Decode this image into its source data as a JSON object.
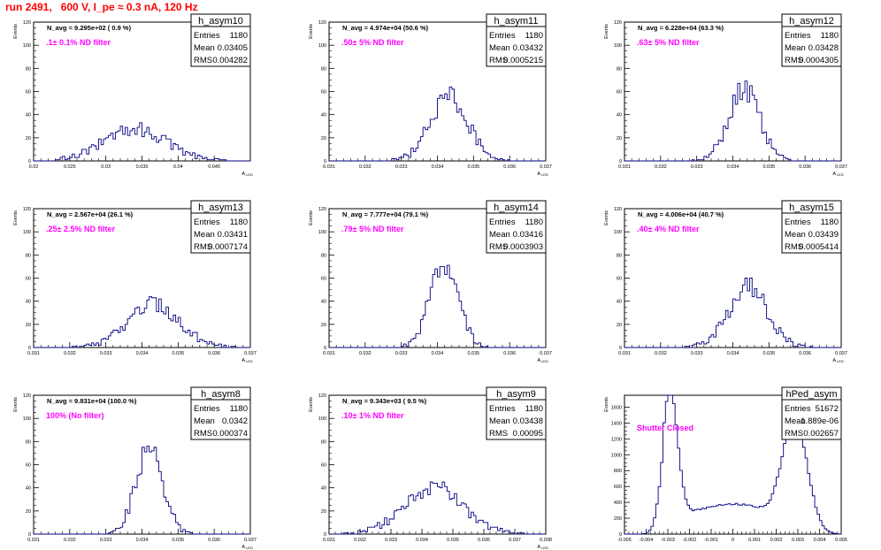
{
  "run_title": "run 2491,   600 V, I_pe ≈ 0.3 nA, 120 Hz",
  "colors": {
    "hist": "#000080",
    "title": "#ff0000",
    "filter": "#ff00ff",
    "axis": "#000000"
  },
  "stat_labels": {
    "entries": "Entries",
    "mean": "Mean",
    "rms": "RMS"
  },
  "chart_data": [
    {
      "type": "bar",
      "name": "h_asym10",
      "entries": "1180",
      "mean": "0.03405",
      "rms": "0.004282",
      "navg": "N_avg = 9.295e+02 ( 0.9 %)",
      "filter": ".1± 0.1% ND filter",
      "ylabel": "Events",
      "xlabel": "A",
      "xsub": "LED",
      "xlim": [
        0.02,
        0.05
      ],
      "ylim": [
        0,
        120
      ],
      "xticks": [
        0.02,
        0.025,
        0.03,
        0.035,
        0.04,
        0.045
      ],
      "xticklabels": [
        "0.02",
        "0.025",
        "0.03",
        "0.035",
        "0.04",
        "0.045"
      ],
      "yticks": [
        0,
        20,
        40,
        60,
        80,
        100,
        120
      ],
      "peak": {
        "center": 0.034,
        "sigma": 0.0043,
        "height": 28
      }
    },
    {
      "type": "bar",
      "name": "h_asym11",
      "entries": "1180",
      "mean": "0.03432",
      "rms": "0.0005215",
      "navg": "N_avg = 4.974e+04 (50.6 %)",
      "filter": ".50± 5% ND filter",
      "ylabel": "Events",
      "xlabel": "A",
      "xsub": "LED",
      "xlim": [
        0.031,
        0.037
      ],
      "ylim": [
        0,
        120
      ],
      "xticks": [
        0.031,
        0.032,
        0.033,
        0.034,
        0.035,
        0.036,
        0.037
      ],
      "xticklabels": [
        "0.031",
        "0.032",
        "0.033",
        "0.034",
        "0.035",
        "0.036",
        "0.037"
      ],
      "yticks": [
        0,
        20,
        40,
        60,
        80,
        100,
        120
      ],
      "peak": {
        "center": 0.03432,
        "sigma": 0.00052,
        "height": 56
      }
    },
    {
      "type": "bar",
      "name": "h_asym12",
      "entries": "1180",
      "mean": "0.03428",
      "rms": "0.0004305",
      "navg": "N_avg = 6.228e+04 (63.3 %)",
      "filter": ".63± 5% ND filter",
      "ylabel": "Events",
      "xlabel": "A",
      "xsub": "LED",
      "xlim": [
        0.031,
        0.037
      ],
      "ylim": [
        0,
        120
      ],
      "xticks": [
        0.031,
        0.032,
        0.033,
        0.034,
        0.035,
        0.036,
        0.037
      ],
      "xticklabels": [
        "0.031",
        "0.032",
        "0.033",
        "0.034",
        "0.035",
        "0.036",
        "0.037"
      ],
      "yticks": [
        0,
        20,
        40,
        60,
        80,
        100,
        120
      ],
      "peak": {
        "center": 0.03432,
        "sigma": 0.00043,
        "height": 62
      }
    },
    {
      "type": "bar",
      "name": "h_asym13",
      "entries": "1180",
      "mean": "0.03431",
      "rms": "0.0007174",
      "navg": "N_avg = 2.567e+04 (26.1 %)",
      "filter": ".25± 2.5% ND filter",
      "ylabel": "Events",
      "xlabel": "A",
      "xsub": "LED",
      "xlim": [
        0.031,
        0.037
      ],
      "ylim": [
        0,
        120
      ],
      "xticks": [
        0.031,
        0.032,
        0.033,
        0.034,
        0.035,
        0.036,
        0.037
      ],
      "xticklabels": [
        "0.031",
        "0.032",
        "0.033",
        "0.034",
        "0.035",
        "0.036",
        "0.037"
      ],
      "yticks": [
        0,
        20,
        40,
        60,
        80,
        100,
        120
      ],
      "peak": {
        "center": 0.03432,
        "sigma": 0.00072,
        "height": 38
      }
    },
    {
      "type": "bar",
      "name": "h_asym14",
      "entries": "1180",
      "mean": "0.03416",
      "rms": "0.0003903",
      "navg": "N_avg = 7.777e+04 (79.1 %)",
      "filter": ".79± 5% ND filter",
      "ylabel": "Events",
      "xlabel": "A",
      "xsub": "LED",
      "xlim": [
        0.031,
        0.037
      ],
      "ylim": [
        0,
        120
      ],
      "xticks": [
        0.031,
        0.032,
        0.033,
        0.034,
        0.035,
        0.036,
        0.037
      ],
      "xticklabels": [
        "0.031",
        "0.032",
        "0.033",
        "0.034",
        "0.035",
        "0.036",
        "0.037"
      ],
      "yticks": [
        0,
        20,
        40,
        60,
        80,
        100,
        120
      ],
      "peak": {
        "center": 0.03418,
        "sigma": 0.00039,
        "height": 72
      }
    },
    {
      "type": "bar",
      "name": "h_asym15",
      "entries": "1180",
      "mean": "0.03439",
      "rms": "0.0005414",
      "navg": "N_avg = 4.006e+04 (40.7 %)",
      "filter": ".40± 4% ND filter",
      "ylabel": "Events",
      "xlabel": "A",
      "xsub": "LED",
      "xlim": [
        0.031,
        0.037
      ],
      "ylim": [
        0,
        120
      ],
      "xticks": [
        0.031,
        0.032,
        0.033,
        0.034,
        0.035,
        0.036,
        0.037
      ],
      "xticklabels": [
        "0.031",
        "0.032",
        "0.033",
        "0.034",
        "0.035",
        "0.036",
        "0.037"
      ],
      "yticks": [
        0,
        20,
        40,
        60,
        80,
        100,
        120
      ],
      "peak": {
        "center": 0.03442,
        "sigma": 0.00054,
        "height": 52
      }
    },
    {
      "type": "bar",
      "name": "h_asym8",
      "entries": "1180",
      "mean": "0.0342",
      "rms": "0.000374",
      "navg": "N_avg = 9.831e+04 (100.0 %)",
      "filter": "100% (No filter)",
      "ylabel": "Events",
      "xlabel": "A",
      "xsub": "LED",
      "xlim": [
        0.031,
        0.037
      ],
      "ylim": [
        0,
        120
      ],
      "xticks": [
        0.031,
        0.032,
        0.033,
        0.034,
        0.035,
        0.036,
        0.037
      ],
      "xticklabels": [
        "0.031",
        "0.032",
        "0.033",
        "0.034",
        "0.035",
        "0.036",
        "0.037"
      ],
      "yticks": [
        0,
        20,
        40,
        60,
        80,
        100,
        120
      ],
      "peak": {
        "center": 0.0342,
        "sigma": 0.00037,
        "height": 74
      }
    },
    {
      "type": "bar",
      "name": "h_asym9",
      "entries": "1180",
      "mean": "0.03438",
      "rms": "0.00095",
      "navg": "N_avg = 9.343e+03 ( 9.5 %)",
      "filter": ".10± 1% ND filter",
      "ylabel": "Events",
      "xlabel": "A",
      "xsub": "LED",
      "xlim": [
        0.031,
        0.038
      ],
      "ylim": [
        0,
        120
      ],
      "xticks": [
        0.031,
        0.032,
        0.033,
        0.034,
        0.035,
        0.036,
        0.037,
        0.038
      ],
      "xticklabels": [
        "0.031",
        "0.032",
        "0.033",
        "0.034",
        "0.035",
        "0.036",
        "0.037",
        "0.038"
      ],
      "yticks": [
        0,
        20,
        40,
        60,
        80,
        100,
        120
      ],
      "peak": {
        "center": 0.03438,
        "sigma": 0.00095,
        "height": 40
      }
    },
    {
      "type": "bar",
      "name": "hPed_asym",
      "entries": "51672",
      "mean": "1.889e-06",
      "rms": "0.002657",
      "navg": "",
      "filter": "Shutter Closed",
      "ylabel": "Events",
      "xlabel": "",
      "xsub": "",
      "xlim": [
        -0.005,
        0.005
      ],
      "ylim": [
        0,
        1750
      ],
      "xticks": [
        -0.005,
        -0.004,
        -0.003,
        -0.002,
        -0.001,
        0,
        0.001,
        0.002,
        0.003,
        0.004,
        0.005
      ],
      "xticklabels": [
        "-0.005",
        "-0.004",
        "-0.003",
        "-0.002",
        "-0.001",
        "0",
        "0.001",
        "0.002",
        "0.003",
        "0.004",
        "0.005"
      ],
      "yticks": [
        0,
        200,
        400,
        600,
        800,
        1000,
        1200,
        1400,
        1600
      ],
      "bimodal": {
        "left": -0.0029,
        "right": 0.0029,
        "sigma": 0.00035,
        "height": 1620,
        "floor": 290
      }
    }
  ]
}
